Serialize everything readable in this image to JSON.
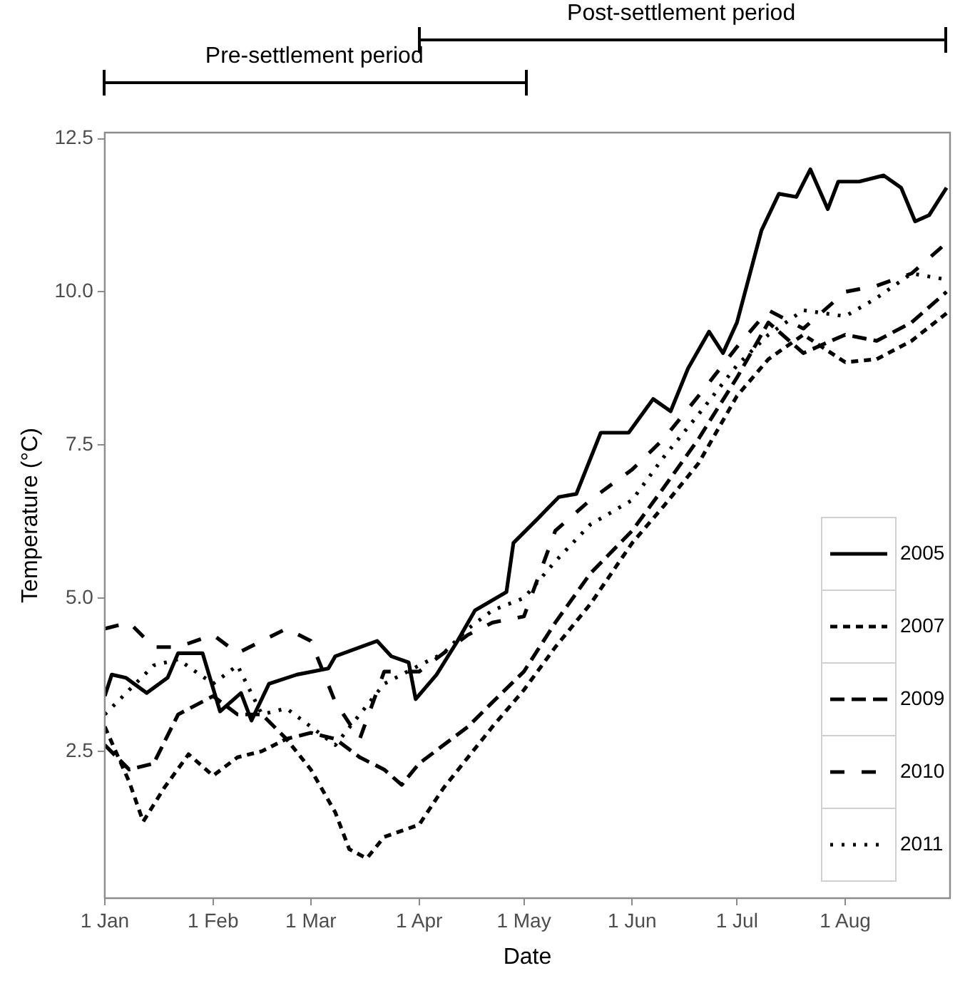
{
  "chart_data": {
    "type": "line",
    "xlabel": "Date",
    "ylabel": "Temperature (°C)",
    "xlim": [
      "--01-01",
      "--08-31"
    ],
    "xticks": [
      {
        "value": "--01-01",
        "label": "1 Jan"
      },
      {
        "value": "--02-01",
        "label": "1 Feb"
      },
      {
        "value": "--03-01",
        "label": "1 Mar"
      },
      {
        "value": "--04-01",
        "label": "1 Apr"
      },
      {
        "value": "--05-01",
        "label": "1 May"
      },
      {
        "value": "--06-01",
        "label": "1 Jun"
      },
      {
        "value": "--07-01",
        "label": "1 Jul"
      },
      {
        "value": "--08-01",
        "label": "1 Aug"
      }
    ],
    "ylim": [
      0.1,
      12.6
    ],
    "yticks": [
      {
        "value": 2.5,
        "label": "2.5"
      },
      {
        "value": 5,
        "label": "5.0"
      },
      {
        "value": 7.5,
        "label": "7.5"
      },
      {
        "value": 10,
        "label": "10.0"
      },
      {
        "value": 12.5,
        "label": "12.5"
      }
    ],
    "grid": false,
    "legend": "bottom right",
    "marker": "none",
    "annotations": [
      "Pre-settlement period",
      "Post-settlement period"
    ],
    "series": [
      {
        "name": "2005",
        "color": "#000000",
        "line_style": "solid",
        "x": [
          "--01-01",
          "--01-03",
          "--01-07",
          "--01-13",
          "--01-19",
          "--01-22",
          "--01-29",
          "--02-03",
          "--02-09",
          "--02-12",
          "--02-17",
          "--02-25",
          "--03-06",
          "--03-08",
          "--03-20",
          "--03-24",
          "--03-29",
          "--03-31",
          "--04-06",
          "--04-12",
          "--04-17",
          "--04-26",
          "--04-28",
          "--05-05",
          "--05-11",
          "--05-16",
          "--05-23",
          "--05-31",
          "--06-07",
          "--06-12",
          "--06-17",
          "--06-23",
          "--06-27",
          "--07-01",
          "--07-08",
          "--07-13",
          "--07-18",
          "--07-22",
          "--07-27",
          "--07-30",
          "--08-05",
          "--08-12",
          "--08-17",
          "--08-21",
          "--08-25",
          "--08-30"
        ],
        "values": [
          3.4,
          3.75,
          3.7,
          3.45,
          3.7,
          4.1,
          4.1,
          3.15,
          3.45,
          3.0,
          3.6,
          3.75,
          3.85,
          4.05,
          4.3,
          4.05,
          3.95,
          3.35,
          3.75,
          4.3,
          4.8,
          5.1,
          5.9,
          6.3,
          6.65,
          6.7,
          7.7,
          7.7,
          8.25,
          8.05,
          8.75,
          9.35,
          9.0,
          9.5,
          11.0,
          11.6,
          11.55,
          12.0,
          11.35,
          11.8,
          11.8,
          11.9,
          11.7,
          11.15,
          11.25,
          11.7
        ]
      },
      {
        "name": "2007",
        "color": "#000000",
        "line_style": "dashed",
        "x": [
          "--01-01",
          "--01-08",
          "--01-12",
          "--01-18",
          "--01-25",
          "--02-01",
          "--02-08",
          "--02-15",
          "--02-22",
          "--03-01",
          "--03-08",
          "--03-12",
          "--03-17",
          "--03-22",
          "--04-01",
          "--04-08",
          "--04-15",
          "--04-22",
          "--05-01",
          "--05-10",
          "--05-20",
          "--06-01",
          "--06-10",
          "--06-20",
          "--07-01",
          "--07-10",
          "--07-20",
          "--08-01",
          "--08-10",
          "--08-20",
          "--08-30"
        ],
        "values": [
          2.9,
          2.0,
          1.35,
          1.9,
          2.45,
          2.1,
          2.4,
          2.5,
          2.7,
          2.2,
          1.5,
          0.9,
          0.75,
          1.1,
          1.3,
          1.9,
          2.4,
          2.9,
          3.5,
          4.2,
          4.9,
          5.9,
          6.5,
          7.2,
          8.3,
          8.9,
          9.3,
          8.85,
          8.9,
          9.2,
          9.65
        ]
      },
      {
        "name": "2009",
        "color": "#000000",
        "line_style": "dashed",
        "x": [
          "--01-01",
          "--01-08",
          "--01-15",
          "--01-22",
          "--02-01",
          "--02-08",
          "--02-15",
          "--02-22",
          "--03-01",
          "--03-08",
          "--03-15",
          "--03-22",
          "--03-27",
          "--04-01",
          "--04-08",
          "--04-15",
          "--04-22",
          "--05-01",
          "--05-10",
          "--05-20",
          "--06-01",
          "--06-10",
          "--06-20",
          "--07-01",
          "--07-10",
          "--07-20",
          "--08-01",
          "--08-10",
          "--08-20",
          "--08-30"
        ],
        "values": [
          2.6,
          2.2,
          2.3,
          3.1,
          3.4,
          3.1,
          3.1,
          2.7,
          2.8,
          2.7,
          2.4,
          2.2,
          1.95,
          2.3,
          2.6,
          2.9,
          3.3,
          3.8,
          4.6,
          5.4,
          6.1,
          6.8,
          7.6,
          8.6,
          9.5,
          9.0,
          9.3,
          9.2,
          9.5,
          10.0
        ]
      },
      {
        "name": "2010",
        "color": "#000000",
        "line_style": "dashed",
        "x": [
          "--01-01",
          "--01-08",
          "--01-15",
          "--01-22",
          "--02-01",
          "--02-08",
          "--02-15",
          "--02-22",
          "--03-01",
          "--03-08",
          "--03-15",
          "--03-22",
          "--04-01",
          "--04-08",
          "--04-15",
          "--04-22",
          "--05-01",
          "--05-10",
          "--05-20",
          "--06-01",
          "--06-10",
          "--06-20",
          "--07-01",
          "--07-10",
          "--07-20",
          "--08-01",
          "--08-10",
          "--08-20",
          "--08-30"
        ],
        "values": [
          4.5,
          4.6,
          4.2,
          4.2,
          4.4,
          4.1,
          4.3,
          4.5,
          4.3,
          3.3,
          2.7,
          3.8,
          3.8,
          4.1,
          4.4,
          4.6,
          4.7,
          6.1,
          6.6,
          7.1,
          7.6,
          8.3,
          9.1,
          9.7,
          9.4,
          10.0,
          10.1,
          10.3,
          10.8
        ]
      },
      {
        "name": "2011",
        "color": "#000000",
        "line_style": "dotted",
        "x": [
          "--01-01",
          "--01-08",
          "--01-15",
          "--01-22",
          "--02-01",
          "--02-08",
          "--02-15",
          "--02-22",
          "--03-01",
          "--03-08",
          "--03-15",
          "--03-22",
          "--04-01",
          "--04-08",
          "--04-15",
          "--04-22",
          "--05-01",
          "--05-10",
          "--05-20",
          "--06-01",
          "--06-10",
          "--06-20",
          "--07-01",
          "--07-10",
          "--07-20",
          "--08-01",
          "--08-10",
          "--08-20",
          "--08-30"
        ],
        "values": [
          3.1,
          3.5,
          3.9,
          4.0,
          3.6,
          3.9,
          3.1,
          3.2,
          2.9,
          2.6,
          3.1,
          3.6,
          3.9,
          4.1,
          4.5,
          4.8,
          5.0,
          5.6,
          6.2,
          6.6,
          7.3,
          8.0,
          8.8,
          9.3,
          9.7,
          9.6,
          9.9,
          10.3,
          10.2
        ]
      }
    ]
  }
}
